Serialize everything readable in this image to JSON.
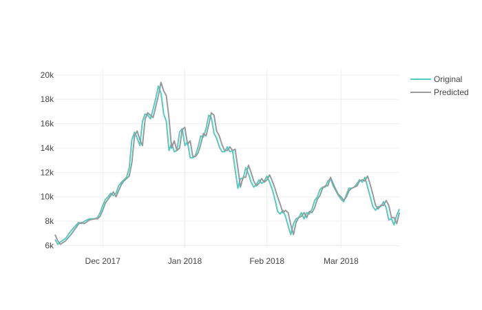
{
  "chart_data": {
    "type": "line",
    "title": "",
    "xlabel": "",
    "ylabel": "",
    "x_range": [
      "2017-11-13",
      "2018-03-23"
    ],
    "ylim": [
      5800,
      20500
    ],
    "x_ticks": [
      {
        "date": "2017-12-01",
        "label": "Dec 2017"
      },
      {
        "date": "2018-01-01",
        "label": "Jan 2018"
      },
      {
        "date": "2018-02-01",
        "label": "Feb 2018"
      },
      {
        "date": "2018-03-01",
        "label": "Mar 2018"
      }
    ],
    "y_ticks": [
      {
        "value": 6000,
        "label": "6k"
      },
      {
        "value": 8000,
        "label": "8k"
      },
      {
        "value": 10000,
        "label": "10k"
      },
      {
        "value": 12000,
        "label": "12k"
      },
      {
        "value": 14000,
        "label": "14k"
      },
      {
        "value": 16000,
        "label": "16k"
      },
      {
        "value": 18000,
        "label": "18k"
      },
      {
        "value": 20000,
        "label": "20k"
      }
    ],
    "grid": true,
    "legend": "top-right",
    "series": [
      {
        "name": "Original",
        "color": "#4ecdc4",
        "points": [
          [
            "2017-11-13",
            6500
          ],
          [
            "2017-11-14",
            6100
          ],
          [
            "2017-11-15",
            6300
          ],
          [
            "2017-11-17",
            6600
          ],
          [
            "2017-11-19",
            7200
          ],
          [
            "2017-11-21",
            7700
          ],
          [
            "2017-11-22",
            7900
          ],
          [
            "2017-11-23",
            7800
          ],
          [
            "2017-11-24",
            8000
          ],
          [
            "2017-11-26",
            8200
          ],
          [
            "2017-11-28",
            8200
          ],
          [
            "2017-11-29",
            8300
          ],
          [
            "2017-11-30",
            8700
          ],
          [
            "2017-12-01",
            9300
          ],
          [
            "2017-12-02",
            9800
          ],
          [
            "2017-12-03",
            10000
          ],
          [
            "2017-12-04",
            10300
          ],
          [
            "2017-12-05",
            10100
          ],
          [
            "2017-12-06",
            10300
          ],
          [
            "2017-12-07",
            10900
          ],
          [
            "2017-12-08",
            11200
          ],
          [
            "2017-12-09",
            11400
          ],
          [
            "2017-12-10",
            11600
          ],
          [
            "2017-12-11",
            12400
          ],
          [
            "2017-12-12",
            14700
          ],
          [
            "2017-12-13",
            15300
          ],
          [
            "2017-12-14",
            14800
          ],
          [
            "2017-12-15",
            14200
          ],
          [
            "2017-12-16",
            16200
          ],
          [
            "2017-12-17",
            16800
          ],
          [
            "2017-12-18",
            16700
          ],
          [
            "2017-12-19",
            16400
          ],
          [
            "2017-12-20",
            17200
          ],
          [
            "2017-12-21",
            18100
          ],
          [
            "2017-12-22",
            19100
          ],
          [
            "2017-12-23",
            18500
          ],
          [
            "2017-12-24",
            16800
          ],
          [
            "2017-12-25",
            16200
          ],
          [
            "2017-12-26",
            13800
          ],
          [
            "2017-12-27",
            14400
          ],
          [
            "2017-12-28",
            13700
          ],
          [
            "2017-12-29",
            13800
          ],
          [
            "2017-12-30",
            15300
          ],
          [
            "2017-12-31",
            15600
          ],
          [
            "2018-01-01",
            14200
          ],
          [
            "2018-01-02",
            14500
          ],
          [
            "2018-01-03",
            13200
          ],
          [
            "2018-01-04",
            13200
          ],
          [
            "2018-01-05",
            13400
          ],
          [
            "2018-01-06",
            14100
          ],
          [
            "2018-01-07",
            15000
          ],
          [
            "2018-01-08",
            14900
          ],
          [
            "2018-01-09",
            15600
          ],
          [
            "2018-01-10",
            16700
          ],
          [
            "2018-01-11",
            16500
          ],
          [
            "2018-01-12",
            15200
          ],
          [
            "2018-01-13",
            14800
          ],
          [
            "2018-01-14",
            14100
          ],
          [
            "2018-01-15",
            13700
          ],
          [
            "2018-01-16",
            13700
          ],
          [
            "2018-01-17",
            14100
          ],
          [
            "2018-01-18",
            13700
          ],
          [
            "2018-01-19",
            13800
          ],
          [
            "2018-01-20",
            12200
          ],
          [
            "2018-01-21",
            10700
          ],
          [
            "2018-01-22",
            11500
          ],
          [
            "2018-01-23",
            11500
          ],
          [
            "2018-01-24",
            12400
          ],
          [
            "2018-01-25",
            11900
          ],
          [
            "2018-01-26",
            11200
          ],
          [
            "2018-01-27",
            10800
          ],
          [
            "2018-01-28",
            11000
          ],
          [
            "2018-01-29",
            11400
          ],
          [
            "2018-01-30",
            11100
          ],
          [
            "2018-01-31",
            11300
          ],
          [
            "2018-02-01",
            11700
          ],
          [
            "2018-02-02",
            11200
          ],
          [
            "2018-02-03",
            10600
          ],
          [
            "2018-02-04",
            9800
          ],
          [
            "2018-02-05",
            8800
          ],
          [
            "2018-02-06",
            8600
          ],
          [
            "2018-02-07",
            8900
          ],
          [
            "2018-02-08",
            8400
          ],
          [
            "2018-02-09",
            7600
          ],
          [
            "2018-02-10",
            6900
          ],
          [
            "2018-02-11",
            7800
          ],
          [
            "2018-02-12",
            8200
          ],
          [
            "2018-02-13",
            8300
          ],
          [
            "2018-02-14",
            8700
          ],
          [
            "2018-02-15",
            8200
          ],
          [
            "2018-02-16",
            8700
          ],
          [
            "2018-02-17",
            8600
          ],
          [
            "2018-02-18",
            9000
          ],
          [
            "2018-02-19",
            9700
          ],
          [
            "2018-02-20",
            10000
          ],
          [
            "2018-02-21",
            10600
          ],
          [
            "2018-02-22",
            10800
          ],
          [
            "2018-02-23",
            10800
          ],
          [
            "2018-02-24",
            11300
          ],
          [
            "2018-02-25",
            11500
          ],
          [
            "2018-02-26",
            10900
          ],
          [
            "2018-02-27",
            10500
          ],
          [
            "2018-02-28",
            10100
          ],
          [
            "2018-03-01",
            9800
          ],
          [
            "2018-03-02",
            9600
          ],
          [
            "2018-03-03",
            10200
          ],
          [
            "2018-03-04",
            10700
          ],
          [
            "2018-03-05",
            10700
          ],
          [
            "2018-03-06",
            10800
          ],
          [
            "2018-03-07",
            11100
          ],
          [
            "2018-03-08",
            11400
          ],
          [
            "2018-03-09",
            11200
          ],
          [
            "2018-03-10",
            11600
          ],
          [
            "2018-03-11",
            10800
          ],
          [
            "2018-03-12",
            10000
          ],
          [
            "2018-03-13",
            9200
          ],
          [
            "2018-03-14",
            8900
          ],
          [
            "2018-03-15",
            9200
          ],
          [
            "2018-03-16",
            9200
          ],
          [
            "2018-03-17",
            9600
          ],
          [
            "2018-03-18",
            9100
          ],
          [
            "2018-03-19",
            8100
          ],
          [
            "2018-03-20",
            8200
          ],
          [
            "2018-03-21",
            7700
          ],
          [
            "2018-03-22",
            8500
          ],
          [
            "2018-03-23",
            9000
          ]
        ]
      },
      {
        "name": "Predicted",
        "color": "#999999",
        "points": [
          [
            "2017-11-13",
            6900
          ],
          [
            "2017-11-14",
            6400
          ],
          [
            "2017-11-15",
            6100
          ],
          [
            "2017-11-17",
            6400
          ],
          [
            "2017-11-19",
            6900
          ],
          [
            "2017-11-21",
            7500
          ],
          [
            "2017-11-22",
            7800
          ],
          [
            "2017-11-23",
            7900
          ],
          [
            "2017-11-24",
            7800
          ],
          [
            "2017-11-26",
            8100
          ],
          [
            "2017-11-28",
            8200
          ],
          [
            "2017-11-29",
            8200
          ],
          [
            "2017-11-30",
            8400
          ],
          [
            "2017-12-01",
            8900
          ],
          [
            "2017-12-02",
            9500
          ],
          [
            "2017-12-03",
            9800
          ],
          [
            "2017-12-04",
            10100
          ],
          [
            "2017-12-05",
            10400
          ],
          [
            "2017-12-06",
            10000
          ],
          [
            "2017-12-07",
            10500
          ],
          [
            "2017-12-08",
            11000
          ],
          [
            "2017-12-09",
            11300
          ],
          [
            "2017-12-10",
            11500
          ],
          [
            "2017-12-11",
            11700
          ],
          [
            "2017-12-12",
            12800
          ],
          [
            "2017-12-13",
            15000
          ],
          [
            "2017-12-14",
            15400
          ],
          [
            "2017-12-15",
            14700
          ],
          [
            "2017-12-16",
            14200
          ],
          [
            "2017-12-17",
            16400
          ],
          [
            "2017-12-18",
            16900
          ],
          [
            "2017-12-19",
            16700
          ],
          [
            "2017-12-20",
            16500
          ],
          [
            "2017-12-21",
            17400
          ],
          [
            "2017-12-22",
            18300
          ],
          [
            "2017-12-23",
            19400
          ],
          [
            "2017-12-24",
            18700
          ],
          [
            "2017-12-25",
            18300
          ],
          [
            "2017-12-26",
            16500
          ],
          [
            "2017-12-27",
            14000
          ],
          [
            "2017-12-28",
            14600
          ],
          [
            "2017-12-29",
            13800
          ],
          [
            "2017-12-30",
            14000
          ],
          [
            "2017-12-31",
            15500
          ],
          [
            "2018-01-01",
            15700
          ],
          [
            "2018-01-02",
            14300
          ],
          [
            "2018-01-03",
            14600
          ],
          [
            "2018-01-04",
            13300
          ],
          [
            "2018-01-05",
            13300
          ],
          [
            "2018-01-06",
            13600
          ],
          [
            "2018-01-07",
            14300
          ],
          [
            "2018-01-08",
            15200
          ],
          [
            "2018-01-09",
            15000
          ],
          [
            "2018-01-10",
            15900
          ],
          [
            "2018-01-11",
            16900
          ],
          [
            "2018-01-12",
            16700
          ],
          [
            "2018-01-13",
            15400
          ],
          [
            "2018-01-14",
            15000
          ],
          [
            "2018-01-15",
            14300
          ],
          [
            "2018-01-16",
            13800
          ],
          [
            "2018-01-17",
            13800
          ],
          [
            "2018-01-18",
            14100
          ],
          [
            "2018-01-19",
            13800
          ],
          [
            "2018-01-20",
            13900
          ],
          [
            "2018-01-21",
            12400
          ],
          [
            "2018-01-22",
            10800
          ],
          [
            "2018-01-23",
            11600
          ],
          [
            "2018-01-24",
            11600
          ],
          [
            "2018-01-25",
            12600
          ],
          [
            "2018-01-26",
            12000
          ],
          [
            "2018-01-27",
            11300
          ],
          [
            "2018-01-28",
            10900
          ],
          [
            "2018-01-29",
            11100
          ],
          [
            "2018-01-30",
            11500
          ],
          [
            "2018-01-31",
            11200
          ],
          [
            "2018-02-01",
            11400
          ],
          [
            "2018-02-02",
            11800
          ],
          [
            "2018-02-03",
            11300
          ],
          [
            "2018-02-04",
            10700
          ],
          [
            "2018-02-05",
            10000
          ],
          [
            "2018-02-06",
            9400
          ],
          [
            "2018-02-07",
            8700
          ],
          [
            "2018-02-08",
            8900
          ],
          [
            "2018-02-09",
            8700
          ],
          [
            "2018-02-10",
            7700
          ],
          [
            "2018-02-11",
            6900
          ],
          [
            "2018-02-12",
            7900
          ],
          [
            "2018-02-13",
            8300
          ],
          [
            "2018-02-14",
            8400
          ],
          [
            "2018-02-15",
            8700
          ],
          [
            "2018-02-16",
            8300
          ],
          [
            "2018-02-17",
            8800
          ],
          [
            "2018-02-18",
            8700
          ],
          [
            "2018-02-19",
            9100
          ],
          [
            "2018-02-20",
            9800
          ],
          [
            "2018-02-21",
            10100
          ],
          [
            "2018-02-22",
            10700
          ],
          [
            "2018-02-23",
            10900
          ],
          [
            "2018-02-24",
            10900
          ],
          [
            "2018-02-25",
            11600
          ],
          [
            "2018-02-26",
            11100
          ],
          [
            "2018-02-27",
            10600
          ],
          [
            "2018-02-28",
            10200
          ],
          [
            "2018-03-01",
            10000
          ],
          [
            "2018-03-02",
            9700
          ],
          [
            "2018-03-03",
            10000
          ],
          [
            "2018-03-04",
            10500
          ],
          [
            "2018-03-05",
            10700
          ],
          [
            "2018-03-06",
            10800
          ],
          [
            "2018-03-07",
            10900
          ],
          [
            "2018-03-08",
            11300
          ],
          [
            "2018-03-09",
            11400
          ],
          [
            "2018-03-10",
            11300
          ],
          [
            "2018-03-11",
            11700
          ],
          [
            "2018-03-12",
            11000
          ],
          [
            "2018-03-13",
            10200
          ],
          [
            "2018-03-14",
            9300
          ],
          [
            "2018-03-15",
            9000
          ],
          [
            "2018-03-16",
            9300
          ],
          [
            "2018-03-17",
            9300
          ],
          [
            "2018-03-18",
            9700
          ],
          [
            "2018-03-19",
            9300
          ],
          [
            "2018-03-20",
            8300
          ],
          [
            "2018-03-21",
            8300
          ],
          [
            "2018-03-22",
            7800
          ],
          [
            "2018-03-23",
            8700
          ]
        ]
      }
    ]
  }
}
